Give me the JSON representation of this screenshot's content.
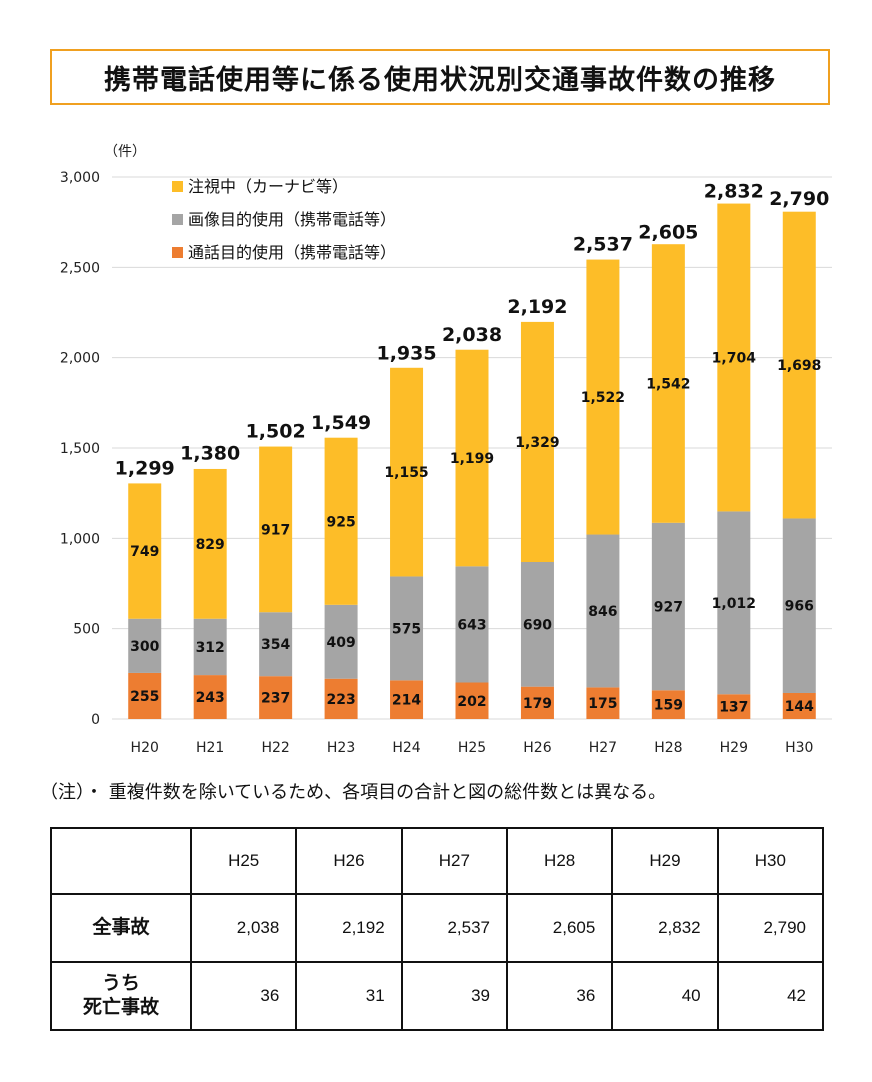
{
  "title": "携帯電話使用等に係る使用状況別交通事故件数の推移",
  "colors": {
    "watch": "#fdbd28",
    "image": "#a5a5a5",
    "call": "#ed7d31",
    "title_border": "#f0a020"
  },
  "chart_data": {
    "type": "bar",
    "stacked": true,
    "unit_label": "（件）",
    "categories": [
      "H20",
      "H21",
      "H22",
      "H23",
      "H24",
      "H25",
      "H26",
      "H27",
      "H28",
      "H29",
      "H30"
    ],
    "yticks": [
      "0",
      "500",
      "1,000",
      "1,500",
      "2,000",
      "2,500",
      "3,000"
    ],
    "ylim": [
      0,
      3000
    ],
    "series": [
      {
        "name": "通話目的使用（携帯電話等）",
        "values": [
          255,
          243,
          237,
          223,
          214,
          202,
          179,
          175,
          159,
          137,
          144
        ],
        "labels": [
          "255",
          "243",
          "237",
          "223",
          "214",
          "202",
          "179",
          "175",
          "159",
          "137",
          "144"
        ]
      },
      {
        "name": "画像目的使用（携帯電話等）",
        "values": [
          300,
          312,
          354,
          409,
          575,
          643,
          690,
          846,
          927,
          1012,
          966
        ],
        "labels": [
          "300",
          "312",
          "354",
          "409",
          "575",
          "643",
          "690",
          "846",
          "927",
          "1,012",
          "966"
        ]
      },
      {
        "name": "注視中（カーナビ等）",
        "values": [
          749,
          829,
          917,
          925,
          1155,
          1199,
          1329,
          1522,
          1542,
          1704,
          1698
        ],
        "labels": [
          "749",
          "829",
          "917",
          "925",
          "1,155",
          "1,199",
          "1,329",
          "1,522",
          "1,542",
          "1,704",
          "1,698"
        ]
      }
    ],
    "totals": [
      1299,
      1380,
      1502,
      1549,
      1935,
      2038,
      2192,
      2537,
      2605,
      2832,
      2790
    ],
    "total_labels": [
      "1,299",
      "1,380",
      "1,502",
      "1,549",
      "1,935",
      "2,038",
      "2,192",
      "2,537",
      "2,605",
      "2,832",
      "2,790"
    ],
    "legend": [
      "注視中（カーナビ等）",
      "画像目的使用（携帯電話等）",
      "通話目的使用（携帯電話等）"
    ],
    "legend_position": "top-left",
    "grid": true
  },
  "note": "（注）・ 重複件数を除いているため、各項目の合計と図の総件数とは異なる。",
  "table": {
    "headers": [
      "H25",
      "H26",
      "H27",
      "H28",
      "H29",
      "H30"
    ],
    "rows": [
      {
        "label_lines": [
          "全事故"
        ],
        "values": [
          "2,038",
          "2,192",
          "2,537",
          "2,605",
          "2,832",
          "2,790"
        ]
      },
      {
        "label_lines": [
          "うち",
          "死亡事故"
        ],
        "values": [
          "36",
          "31",
          "39",
          "36",
          "40",
          "42"
        ]
      }
    ]
  }
}
